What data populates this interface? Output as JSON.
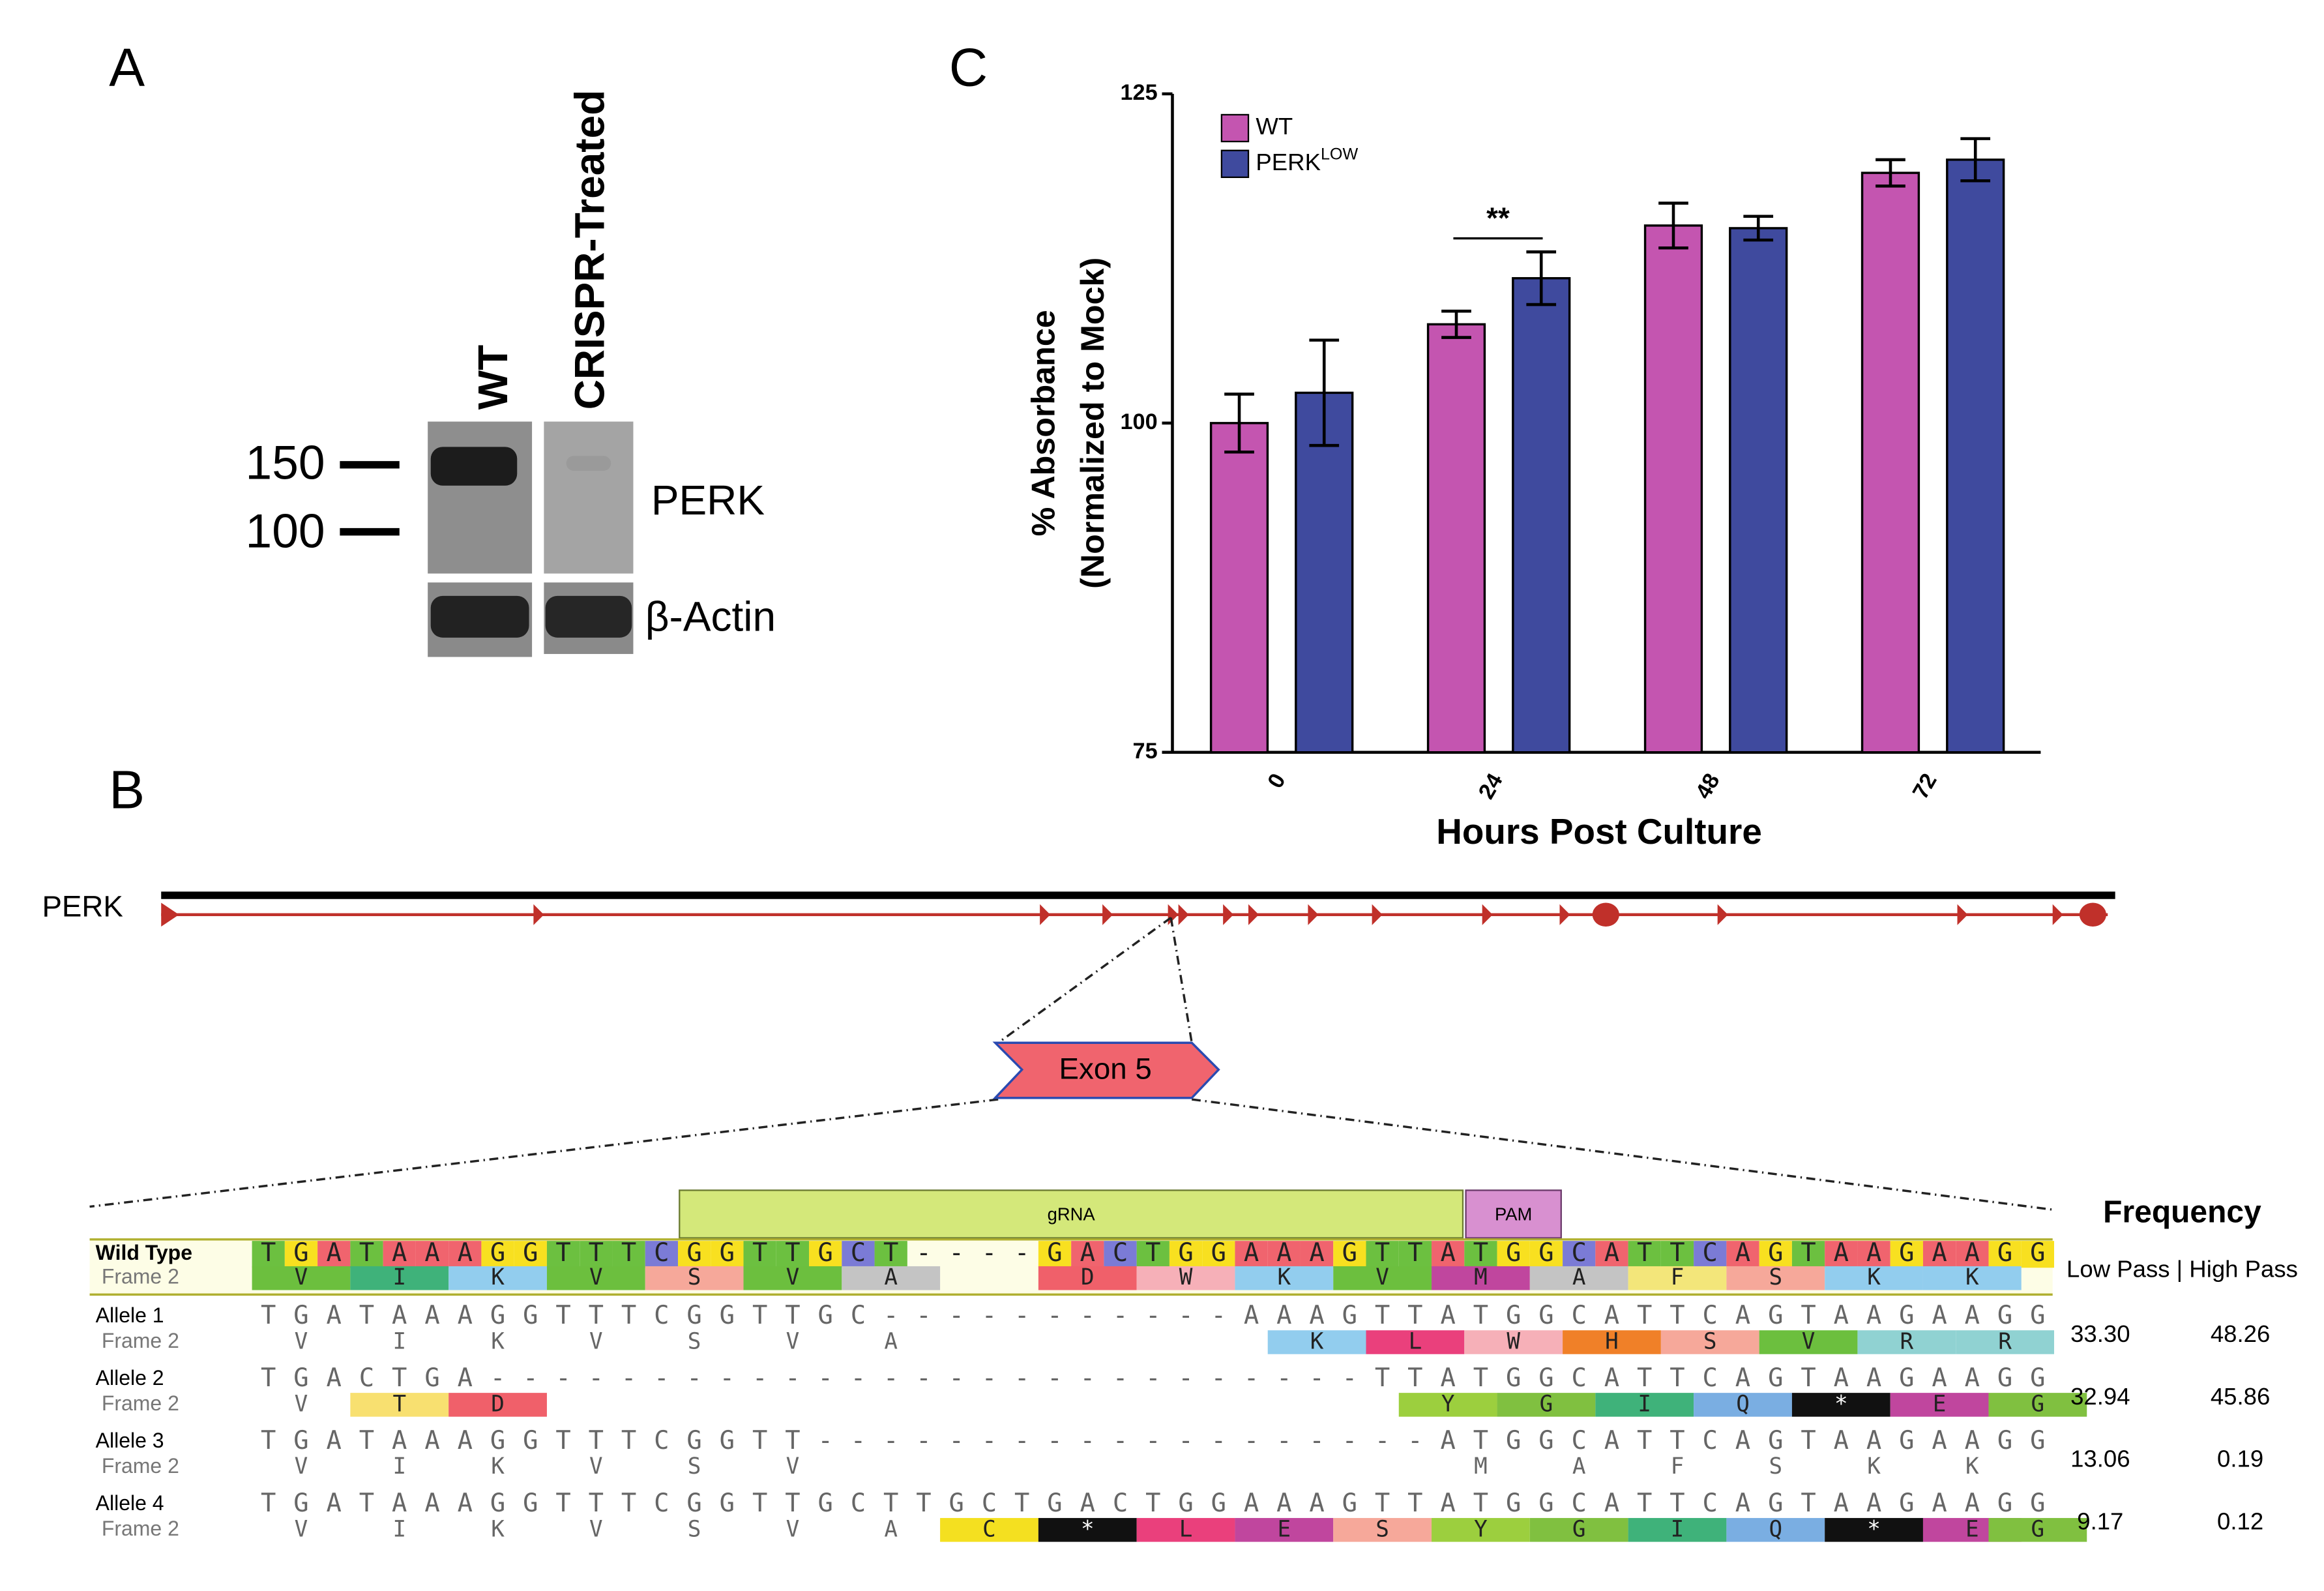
{
  "panel_labels": [
    "A",
    "B",
    "C"
  ],
  "blot": {
    "lanes": [
      "WT",
      "CRISPR-Treated"
    ],
    "markers": [
      "150",
      "100"
    ],
    "bands": [
      "PERK",
      "β-Actin"
    ]
  },
  "gene": {
    "name": "PERK",
    "exon": "Exon 5"
  },
  "alignment": {
    "header": "Frequency",
    "subheader": "Low Pass | High Pass",
    "guide_label": "gRNA",
    "pam_label": "PAM",
    "nt_colors": {
      "A": "#f0646e",
      "T": "#6cc040",
      "G": "#f8e020",
      "C": "#7b7bd6"
    },
    "aa_colors": {
      "V": "#6cbf3e",
      "I": "#3fb27a",
      "K": "#92cdee",
      "S": "#f6a89a",
      "A": "#c4c4c4",
      "D": "#f0606a",
      "W": "#f6b0b8",
      "M": "#c0469e",
      "F": "#f3e67a",
      "L": "#ea407c",
      "H": "#f08028",
      "R": "#90d2d2",
      "T": "#f8e070",
      "Y": "#9ccf3e",
      "G": "#80c040",
      "Q": "#7aaee2",
      "*": "#111111",
      "E": "#c0469e",
      "C": "#f4e020"
    },
    "rows": [
      {
        "label": "Wild Type",
        "frame_label": "Frame 2",
        "dna": "TGATAAAGGTTTCGGTTGCT----GACTGGAAAGTTATGGCATTCAGTAAGAAGG",
        "frame": " V  I  K  V  S  V  A     D  W  K  V  M  A  F  S  K  K  ",
        "frame_box": " x  x  x  x  x  x  x     x  x  x  x  x  x  x  x  x  x  "
      },
      {
        "label": "Allele 1",
        "frame_label": "Frame 2",
        "dna": "TGATAAAGGTTTCGGTTGC-----------AAAGTTATGGCATTCAGTAAGAAGG",
        "frame": " V  I  K  V  S  V  A            K  L  W  H  S  V  R  R ",
        "frame_box": "                                x  x  x  x  x  x  x  x ",
        "low": "33.30",
        "high": "48.26"
      },
      {
        "label": "Allele 2",
        "frame_label": "Frame 2",
        "dna": "TGACTGA---------------------------TTATGGCATTCAGTAAGAAGG",
        "frame": " V  T  D                            Y  G  I  Q  *  E  G",
        "frame_box": "    x  x                            x  x  x  x  x  x  x",
        "low": "32.94",
        "high": "45.86"
      },
      {
        "label": "Allele 3",
        "frame_label": "Frame 2",
        "dna": "TGATAAAGGTTTCGGTT-------------------ATGGCATTCAGTAAGAAGG",
        "frame": " V  I  K  V  S  V                    M  A  F  S  K  K  ",
        "low": "13.06",
        "high": "0.19"
      },
      {
        "label": "Allele 4",
        "frame_label": "Frame 2",
        "dna": "TGATAAAGGTTTCGGTTGCTTGCTGACTGGAAAGTTATGGCATTCAGTAAGAAGG",
        "frame": " V  I  K  V  S  V  A  C  *  L  E  S  Y  G  I  Q  *  E G",
        "frame_box": "                      x  x  x  x  x  x  x  x  x  x  x x",
        "low": "9.17",
        "high": "0.12"
      }
    ]
  },
  "chart_data": {
    "type": "bar",
    "y_label_lines": [
      "% Absorbance",
      "(Normalized to Mock)"
    ],
    "x_label": "Hours Post Culture",
    "categories": [
      "0",
      "24",
      "48",
      "72"
    ],
    "series": [
      {
        "name": "WT",
        "color": "#c455b0",
        "values": [
          100,
          107.5,
          115,
          119
        ],
        "errors": [
          2.2,
          1,
          1.7,
          1
        ]
      },
      {
        "name": "PERK",
        "name_sup": "LOW",
        "color": "#3f4a9e",
        "values": [
          102.3,
          111,
          114.8,
          120
        ],
        "errors": [
          4,
          2,
          0.9,
          1.6
        ]
      }
    ],
    "ylim": [
      75,
      125
    ],
    "yticks": [
      75,
      100,
      125
    ],
    "annotation": "**",
    "legend": "upper left"
  }
}
